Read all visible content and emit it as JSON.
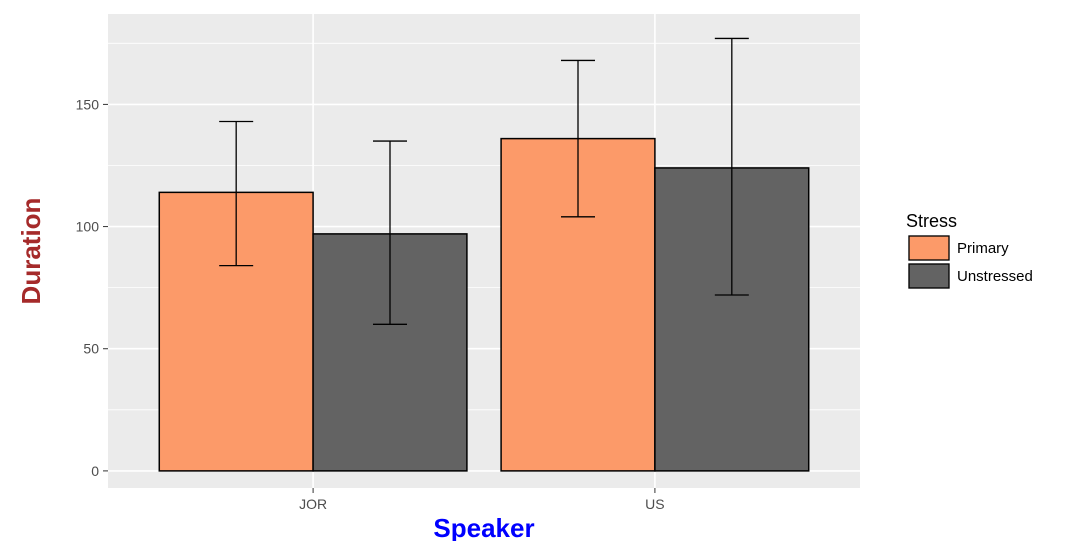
{
  "chart_data": {
    "type": "bar",
    "categories": [
      "JOR",
      "US"
    ],
    "series": [
      {
        "name": "Primary",
        "values": [
          114,
          136
        ],
        "error_low": [
          84,
          104
        ],
        "error_high": [
          143,
          168
        ],
        "color": "#FC9A69"
      },
      {
        "name": "Unstressed",
        "values": [
          97,
          124
        ],
        "error_low": [
          60,
          72
        ],
        "error_high": [
          135,
          177
        ],
        "color": "#636363"
      }
    ],
    "xlabel": "Speaker",
    "ylabel": "Duration",
    "yticks": [
      "0",
      "50",
      "100",
      "150"
    ],
    "ylim": [
      -7,
      187
    ],
    "grid": true,
    "legend": {
      "title": "Stress",
      "position": "right"
    },
    "colors": {
      "panel_background": "#EBEBEB",
      "grid": "#FFFFFF",
      "xlabel": "#0000FF",
      "ylabel": "#A52A2A",
      "bar_outline": "#000000"
    }
  }
}
